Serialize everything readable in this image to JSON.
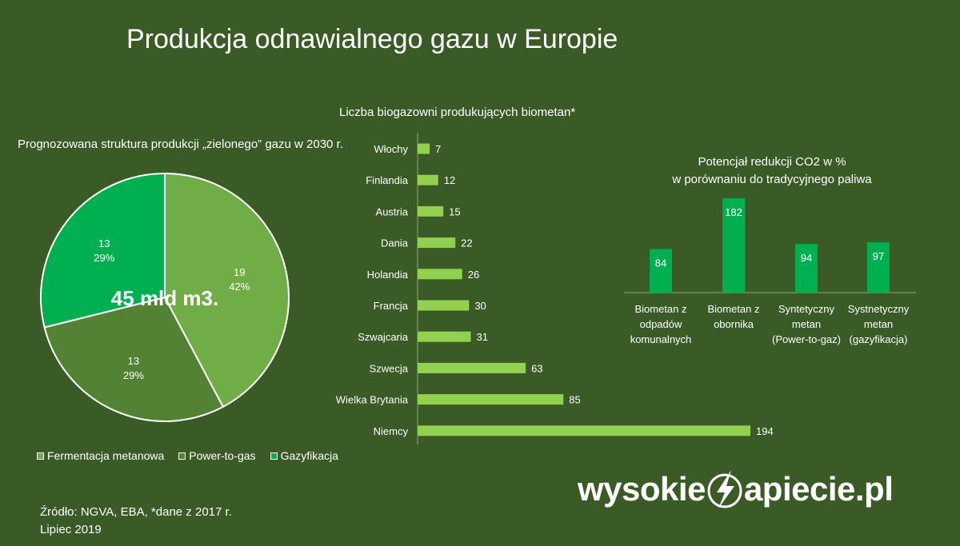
{
  "title": "Produkcja odnawialnego gazu w Europie",
  "colors": {
    "background": "#3a5a26",
    "fermentacja": "#70ad47",
    "power_to_gas": "#548235",
    "gazyfikacja": "#00b050",
    "bar_light": "#92d050",
    "co2_bar": "#00b050"
  },
  "chart_data": [
    {
      "type": "pie",
      "title": "Prognozowana struktura produkcji „zielonego” gazu w 2030 r.",
      "center_label": "45 mld m3.",
      "slices": [
        {
          "name": "Fermentacja metanowa",
          "value": 19,
          "percent": "42%",
          "value_label": "19",
          "color": "#70ad47"
        },
        {
          "name": "Power-to-gas",
          "value": 13,
          "percent": "29%",
          "value_label": "13",
          "color": "#548235"
        },
        {
          "name": "Gazyfikacja",
          "value": 13,
          "percent": "29%",
          "value_label": "13",
          "color": "#00b050"
        }
      ],
      "legend_position": "bottom"
    },
    {
      "type": "bar",
      "orientation": "horizontal",
      "title": "Liczba biogazowni produkujących biometan*",
      "categories": [
        "Włochy",
        "Finlandia",
        "Austria",
        "Dania",
        "Holandia",
        "Francja",
        "Szwajcaria",
        "Szwecja",
        "Wielka Brytania",
        "Niemcy"
      ],
      "values": [
        7,
        12,
        15,
        22,
        26,
        30,
        31,
        63,
        85,
        194
      ],
      "xlim": [
        0,
        200
      ],
      "grid": false
    },
    {
      "type": "bar",
      "title_lines": [
        "Potencjał redukcji CO2 w %",
        "w porównaniu do tradycyjnego paliwa"
      ],
      "categories": [
        [
          "Biometan z",
          "odpadów",
          "komunalnych"
        ],
        [
          "Biometan z",
          "obornika"
        ],
        [
          "Syntetyczny",
          "metan",
          "(Power-to-gaz)"
        ],
        [
          "Systnetyczny",
          "metan",
          "(gazyfikacja)"
        ]
      ],
      "values": [
        84,
        182,
        94,
        97
      ],
      "ylim": [
        0,
        182
      ],
      "grid": false
    }
  ],
  "source": {
    "line1": "Źródło: NGVA,  EBA, *dane z 2017 r.",
    "line2": "Lipiec 2019"
  },
  "logo": {
    "left": "wysokie",
    "right": "apiecie.pl"
  }
}
